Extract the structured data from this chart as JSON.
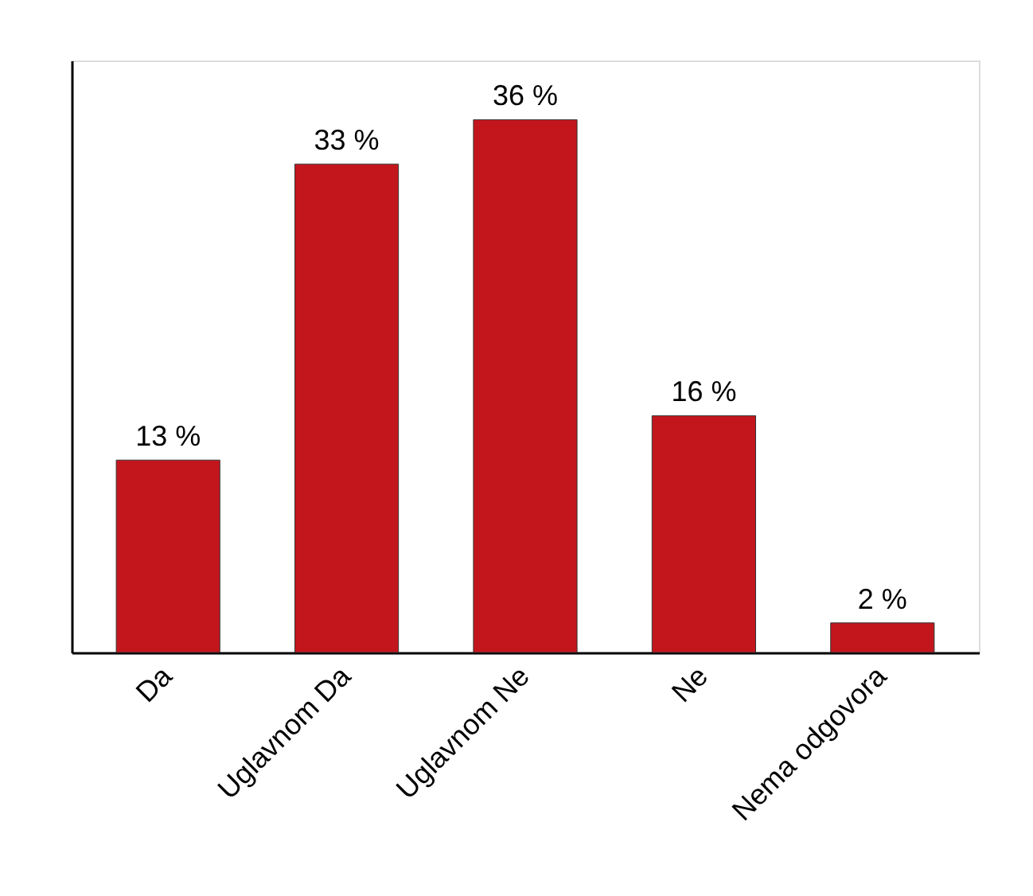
{
  "chart_data": {
    "type": "bar",
    "categories": [
      "Da",
      "Uglavnom Da",
      "Uglavnom Ne",
      "Ne",
      "Nema odgovora"
    ],
    "values": [
      13,
      33,
      36,
      16,
      2
    ],
    "value_labels": [
      "13 %",
      "33 %",
      "36 %",
      "16 %",
      "2 %"
    ],
    "color": "#c3161c",
    "ylim": [
      0,
      40
    ],
    "grid": false
  }
}
